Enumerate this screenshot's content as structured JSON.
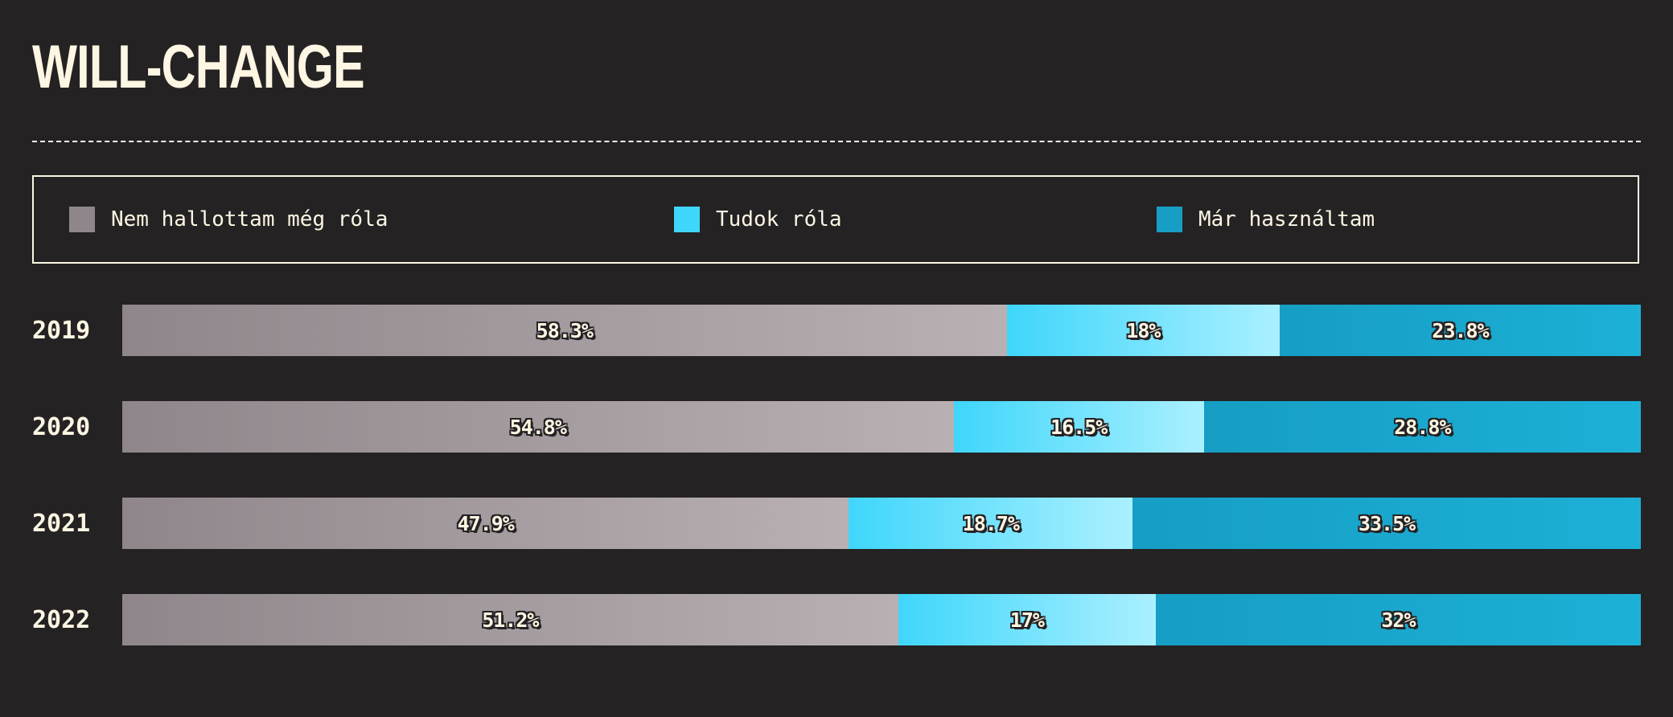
{
  "title": "WILL-CHANGE",
  "legend": [
    {
      "label": "Nem hallottam még róla",
      "color": "#8f868b"
    },
    {
      "label": "Tudok róla",
      "color": "#3fd6fb"
    },
    {
      "label": "Már használtam",
      "color": "#169ec4"
    }
  ],
  "chart_data": {
    "type": "bar",
    "orientation": "horizontal",
    "stacked": true,
    "title": "WILL-CHANGE",
    "categories": [
      "2019",
      "2020",
      "2021",
      "2022"
    ],
    "series": [
      {
        "name": "Nem hallottam még róla",
        "values": [
          58.3,
          54.8,
          47.9,
          51.2
        ],
        "labels": [
          "58.3%",
          "54.8%",
          "47.9%",
          "51.2%"
        ],
        "gradient": [
          "#8f868b",
          "#b9b0b3"
        ]
      },
      {
        "name": "Tudok róla",
        "values": [
          18,
          16.5,
          18.7,
          17
        ],
        "labels": [
          "18%",
          "16.5%",
          "18.7%",
          "17%"
        ],
        "gradient": [
          "#3fd6fb",
          "#aaf0ff"
        ]
      },
      {
        "name": "Már használtam",
        "values": [
          23.8,
          28.8,
          33.5,
          32
        ],
        "labels": [
          "23.8%",
          "28.8%",
          "33.5%",
          "32%"
        ],
        "gradient": [
          "#169ec4",
          "#1db0d6"
        ]
      }
    ],
    "xlim": [
      0,
      100
    ],
    "legend_position": "top",
    "grid": false
  }
}
